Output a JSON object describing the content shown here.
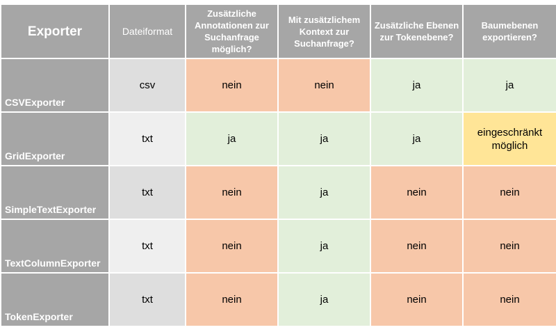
{
  "headers": {
    "exporter": "Exporter",
    "format": "Dateiformat",
    "annotations": "Zusätzliche Annotationen zur Suchanfrage möglich?",
    "context": "Mit zusätzlichem Kontext zur Suchanfrage?",
    "layers": "Zusätzliche Ebenen zur Tokenebene?",
    "trees": "Baumebenen exportieren?"
  },
  "colors": {
    "header_bg": "#a6a6a6",
    "no": "#f7c7a9",
    "yes": "#e2efda",
    "limited": "#ffe597"
  },
  "rows": [
    {
      "name": "CSVExporter",
      "format": "csv",
      "annotations": "nein",
      "context": "nein",
      "layers": "ja",
      "trees": "ja"
    },
    {
      "name": "GridExporter",
      "format": "txt",
      "annotations": "ja",
      "context": "ja",
      "layers": "ja",
      "trees": "eingeschränkt möglich"
    },
    {
      "name": "SimpleTextExporter",
      "format": "txt",
      "annotations": "nein",
      "context": "ja",
      "layers": "nein",
      "trees": "nein"
    },
    {
      "name": "TextColumnExporter",
      "format": "txt",
      "annotations": "nein",
      "context": "ja",
      "layers": "nein",
      "trees": "nein"
    },
    {
      "name": "TokenExporter",
      "format": "txt",
      "annotations": "nein",
      "context": "ja",
      "layers": "nein",
      "trees": "nein"
    }
  ]
}
